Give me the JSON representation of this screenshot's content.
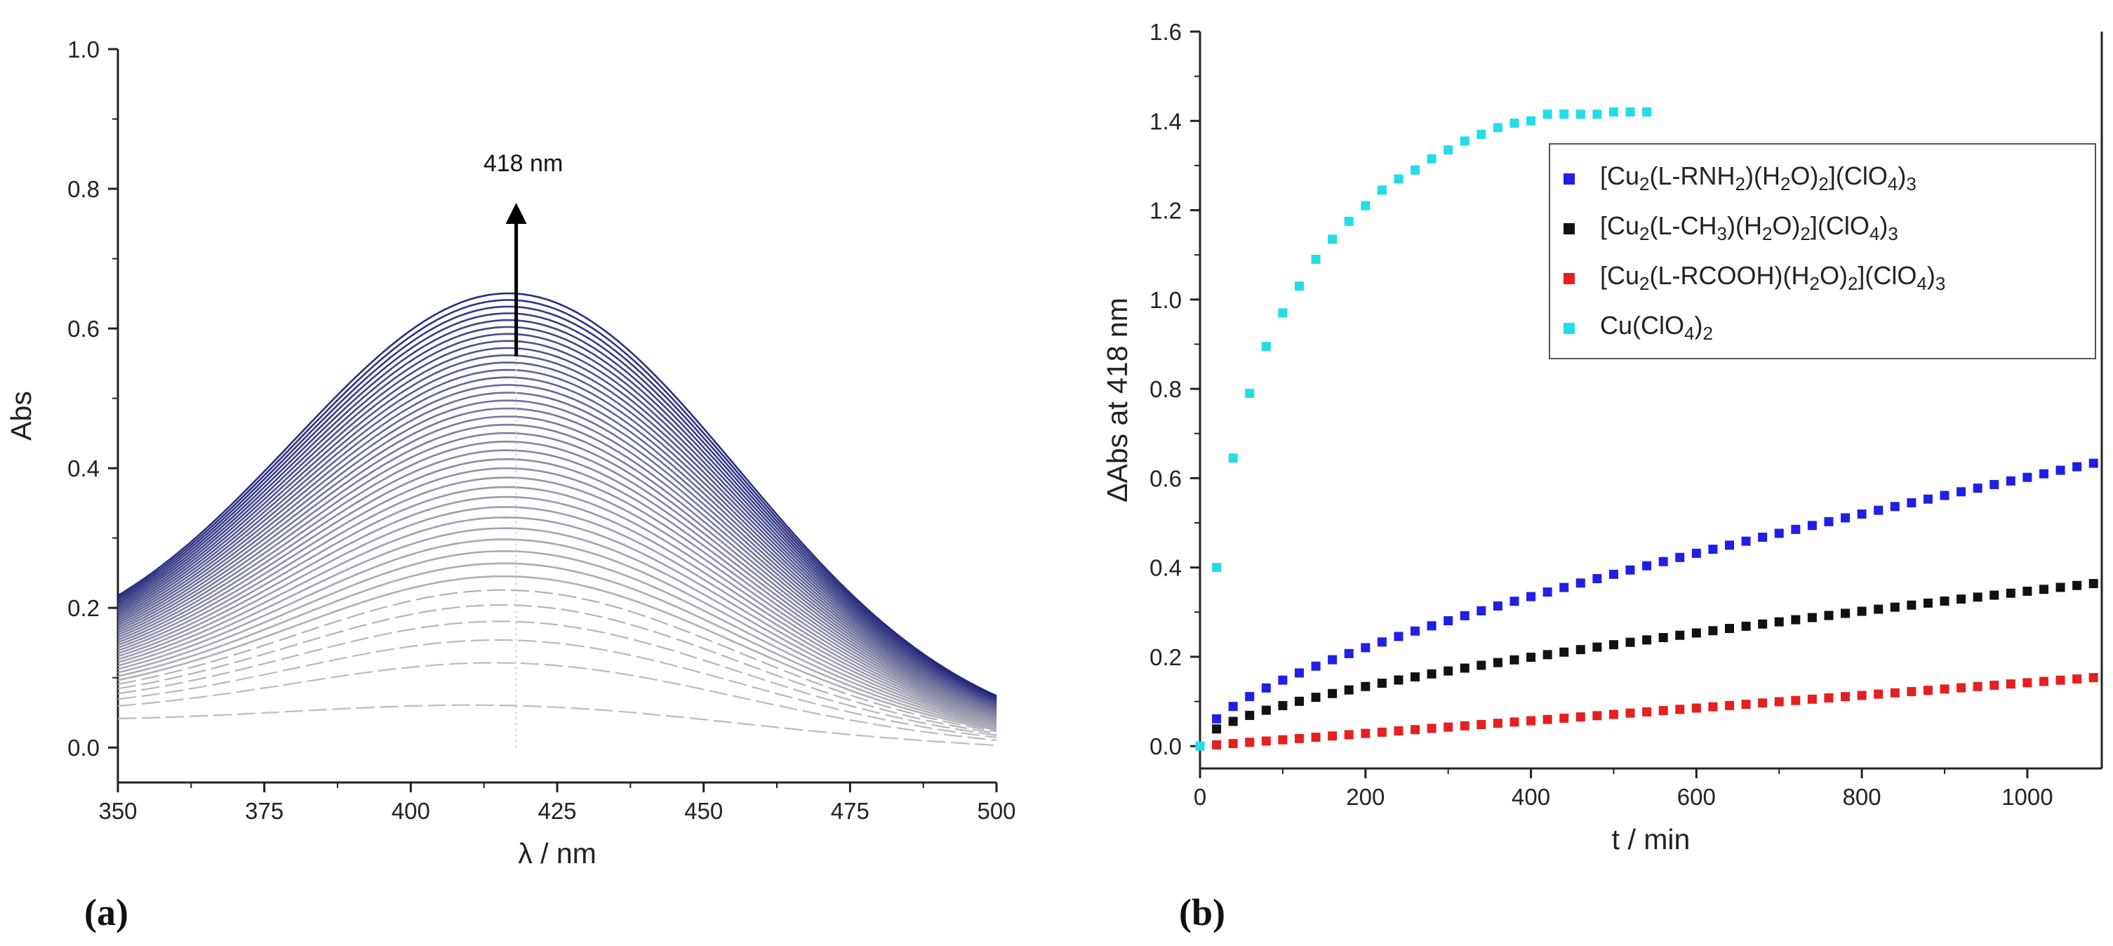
{
  "chart_data": [
    {
      "id": "a",
      "type": "line",
      "panel_label": "(a)",
      "title": "",
      "xlabel": "λ / nm",
      "ylabel": "Abs",
      "xlim": [
        350,
        500
      ],
      "ylim": [
        -0.05,
        1.0
      ],
      "xticks": [
        "350",
        "375",
        "400",
        "425",
        "450",
        "475",
        "500"
      ],
      "yticks": [
        "0.0",
        "0.2",
        "0.4",
        "0.6",
        "0.8",
        "1.0"
      ],
      "annotation": {
        "text": "418 nm",
        "x": 418,
        "arrow_from": 0.56,
        "arrow_to": 0.78
      },
      "spectra": {
        "count": 40,
        "peak_nm": 418,
        "first_spectrum": {
          "at_350": 0.045,
          "at_418": 0.06,
          "at_500": 0.005
        },
        "last_spectrum": {
          "at_350": 0.23,
          "at_418": 0.65,
          "at_500": 0.08
        },
        "color_start": "#b8b8b8",
        "color_end": "#1f237a"
      },
      "grid": false
    },
    {
      "id": "b",
      "type": "scatter",
      "panel_label": "(b)",
      "title": "",
      "xlabel": "t / min",
      "ylabel": "ΔAbs at 418 nm",
      "xlim": [
        0,
        1090
      ],
      "ylim": [
        -0.05,
        1.6
      ],
      "xticks": [
        "0",
        "200",
        "400",
        "600",
        "800",
        "1000"
      ],
      "yticks": [
        "0.0",
        "0.2",
        "0.4",
        "0.6",
        "0.8",
        "1.0",
        "1.2",
        "1.4",
        "1.6"
      ],
      "legend_position": "top-right",
      "series": [
        {
          "name": "[Cu2(L-RNH2)(H2O)2](ClO4)3",
          "legend_parts": [
            [
              "[Cu",
              ""
            ],
            [
              "2",
              "sub"
            ],
            [
              "(L-RNH",
              ""
            ],
            [
              "2",
              "sub"
            ],
            [
              ")(H",
              ""
            ],
            [
              "2",
              "sub"
            ],
            [
              "O)",
              ""
            ],
            [
              "2",
              "sub"
            ],
            [
              "](ClO",
              ""
            ],
            [
              "4",
              "sub"
            ],
            [
              ")",
              ""
            ],
            [
              "3",
              "sub"
            ]
          ],
          "color": "#1f1fe6",
          "model": {
            "type": "sqrt_lin",
            "a": 0.0128,
            "b": 0.000197
          },
          "t_start": 20,
          "t_end": 1080,
          "dt": 20
        },
        {
          "name": "[Cu2(L-CH3)(H2O)2](ClO4)3",
          "legend_parts": [
            [
              "[Cu",
              ""
            ],
            [
              "2",
              "sub"
            ],
            [
              "(L-CH",
              ""
            ],
            [
              "3",
              "sub"
            ],
            [
              ")(H",
              ""
            ],
            [
              "2",
              "sub"
            ],
            [
              "O)",
              ""
            ],
            [
              "2",
              "sub"
            ],
            [
              "](ClO",
              ""
            ],
            [
              "4",
              "sub"
            ],
            [
              ")",
              ""
            ],
            [
              "3",
              "sub"
            ]
          ],
          "color": "#111111",
          "model": {
            "type": "sqrt_lin",
            "a": 0.0082,
            "b": 8.75e-05
          },
          "t_start": 20,
          "t_end": 1080,
          "dt": 20
        },
        {
          "name": "[Cu2(L-RCOOH)(H2O)2](ClO4)3",
          "legend_parts": [
            [
              "[Cu",
              ""
            ],
            [
              "2",
              "sub"
            ],
            [
              "(L-RCOOH)(H",
              ""
            ],
            [
              "2",
              "sub"
            ],
            [
              "O)",
              ""
            ],
            [
              "2",
              "sub"
            ],
            [
              "](ClO",
              ""
            ],
            [
              "4",
              "sub"
            ],
            [
              ")",
              ""
            ],
            [
              "3",
              "sub"
            ]
          ],
          "color": "#e61f1f",
          "model": {
            "type": "linear",
            "a": 0.0,
            "b": 0.000142
          },
          "t_start": 20,
          "t_end": 1080,
          "dt": 20
        },
        {
          "name": "Cu(ClO4)2",
          "legend_parts": [
            [
              "Cu(ClO",
              ""
            ],
            [
              "4",
              "sub"
            ],
            [
              ")",
              ""
            ],
            [
              "2",
              "sub"
            ]
          ],
          "color": "#22dde8",
          "t": [
            0,
            20,
            40,
            60,
            80,
            100,
            120,
            140,
            160,
            180,
            200,
            220,
            240,
            260,
            280,
            300,
            320,
            340,
            360,
            380,
            400,
            420,
            440,
            460,
            480,
            500,
            520,
            540
          ],
          "values": [
            0.0,
            0.4,
            0.645,
            0.79,
            0.895,
            0.97,
            1.03,
            1.09,
            1.135,
            1.175,
            1.21,
            1.245,
            1.27,
            1.29,
            1.315,
            1.335,
            1.355,
            1.37,
            1.385,
            1.395,
            1.4,
            1.415,
            1.415,
            1.415,
            1.415,
            1.42,
            1.42,
            1.42
          ]
        }
      ],
      "grid": false
    }
  ]
}
